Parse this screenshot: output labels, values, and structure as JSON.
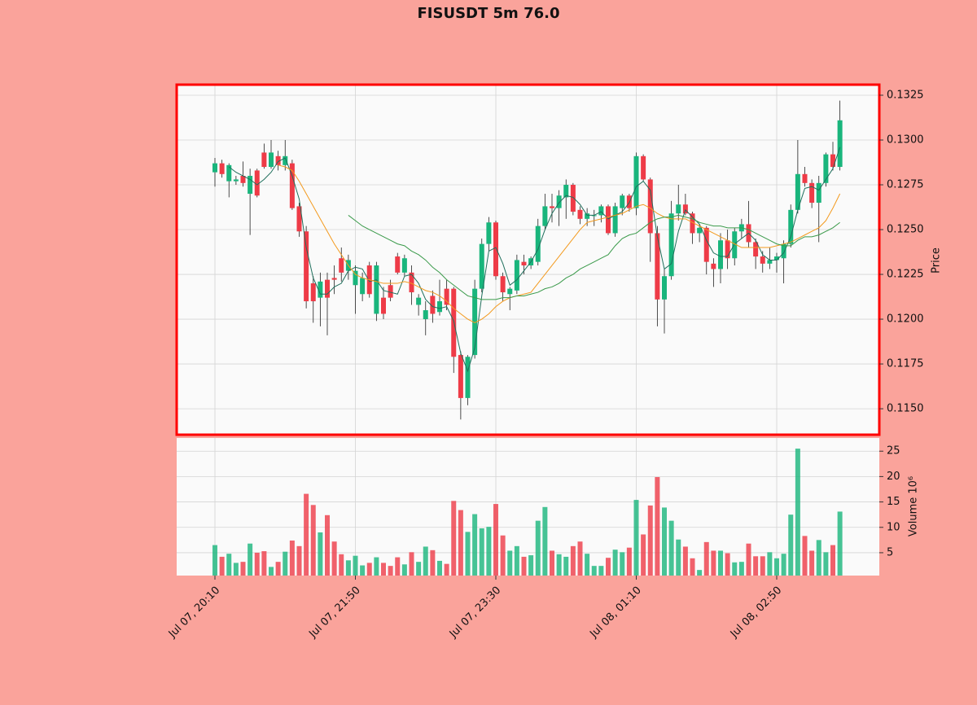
{
  "chart_data": {
    "type": "candlestick",
    "title": "FISUSDT 5m 76.0",
    "ylabel": "Price",
    "y2label": "Volume  10⁶",
    "up_color": "#19b57c",
    "down_color": "#ee3b47",
    "categories": [
      "Jul 07, 20:10",
      null,
      null,
      null,
      null,
      null,
      null,
      null,
      null,
      null,
      null,
      null,
      null,
      null,
      null,
      null,
      null,
      null,
      null,
      null,
      "Jul 07, 21:50",
      null,
      null,
      null,
      null,
      null,
      null,
      null,
      null,
      null,
      null,
      null,
      null,
      null,
      null,
      null,
      null,
      null,
      null,
      null,
      "Jul 07, 23:30",
      null,
      null,
      null,
      null,
      null,
      null,
      null,
      null,
      null,
      null,
      null,
      null,
      null,
      null,
      null,
      null,
      null,
      null,
      null,
      "Jul 08, 01:10",
      null,
      null,
      null,
      null,
      null,
      null,
      null,
      null,
      null,
      null,
      null,
      null,
      null,
      null,
      null,
      null,
      null,
      null,
      null,
      "Jul 08, 02:50",
      null,
      null,
      null,
      null,
      null,
      null,
      null,
      null,
      null
    ],
    "open": [
      0.1282,
      0.1287,
      0.1277,
      0.1277,
      0.128,
      0.127,
      0.1283,
      0.1293,
      0.1285,
      0.1291,
      0.1286,
      0.1287,
      0.1263,
      0.1249,
      0.122,
      0.1212,
      0.1222,
      0.1223,
      0.1234,
      0.1227,
      0.1219,
      0.1214,
      0.123,
      0.1203,
      0.1212,
      0.1219,
      0.1235,
      0.1226,
      0.1226,
      0.1208,
      0.12,
      0.1213,
      0.1204,
      0.1217,
      0.1217,
      0.118,
      0.1156,
      0.118,
      0.1217,
      0.1242,
      0.1254,
      0.1224,
      0.1214,
      0.1216,
      0.1232,
      0.123,
      0.1232,
      0.1252,
      0.1263,
      0.1262,
      0.1268,
      0.1275,
      0.1261,
      0.1256,
      0.1258,
      0.1258,
      0.1263,
      0.1248,
      0.1262,
      0.1269,
      0.1262,
      0.1291,
      0.1278,
      0.1248,
      0.1211,
      0.1224,
      0.1259,
      0.1264,
      0.1259,
      0.1248,
      0.1251,
      0.1231,
      0.1228,
      0.1244,
      0.1234,
      0.1249,
      0.1253,
      0.1243,
      0.1235,
      0.1231,
      0.1233,
      0.1234,
      0.1242,
      0.1261,
      0.1281,
      0.1276,
      0.1265,
      0.1276,
      0.1292,
      0.1285
    ],
    "high": [
      0.129,
      0.1289,
      0.1287,
      0.128,
      0.1288,
      0.1284,
      0.1284,
      0.1298,
      0.13,
      0.1294,
      0.13,
      0.1289,
      0.1265,
      0.1252,
      0.1224,
      0.1226,
      0.1226,
      0.123,
      0.124,
      0.1236,
      0.123,
      0.1226,
      0.1232,
      0.1232,
      0.1218,
      0.1222,
      0.1237,
      0.1236,
      0.123,
      0.1214,
      0.121,
      0.1216,
      0.1222,
      0.1222,
      0.1218,
      0.1182,
      0.118,
      0.1222,
      0.1245,
      0.1257,
      0.1255,
      0.1226,
      0.1218,
      0.1236,
      0.1236,
      0.1235,
      0.1256,
      0.127,
      0.127,
      0.1272,
      0.1278,
      0.1276,
      0.1263,
      0.1262,
      0.1261,
      0.1264,
      0.1264,
      0.1265,
      0.127,
      0.127,
      0.1293,
      0.1292,
      0.1279,
      0.1252,
      0.1228,
      0.1266,
      0.1275,
      0.127,
      0.126,
      0.1253,
      0.1252,
      0.1234,
      0.1248,
      0.125,
      0.1251,
      0.1256,
      0.1266,
      0.1245,
      0.1238,
      0.124,
      0.1237,
      0.1244,
      0.1264,
      0.13,
      0.1285,
      0.1278,
      0.128,
      0.1293,
      0.1299,
      0.1322
    ],
    "low": [
      0.1274,
      0.1279,
      0.1268,
      0.1275,
      0.1274,
      0.1247,
      0.1268,
      0.1284,
      0.1284,
      0.1283,
      0.1283,
      0.1261,
      0.1246,
      0.1206,
      0.1198,
      0.1196,
      0.1191,
      0.1214,
      0.1221,
      0.1222,
      0.1203,
      0.121,
      0.1212,
      0.1199,
      0.12,
      0.121,
      0.1225,
      0.1224,
      0.1208,
      0.1202,
      0.1191,
      0.1198,
      0.1202,
      0.1205,
      0.117,
      0.1144,
      0.1152,
      0.1178,
      0.1215,
      0.1238,
      0.1222,
      0.121,
      0.1205,
      0.1214,
      0.1225,
      0.1228,
      0.123,
      0.125,
      0.1254,
      0.1252,
      0.1256,
      0.1258,
      0.1253,
      0.1252,
      0.1252,
      0.1254,
      0.1247,
      0.1246,
      0.1258,
      0.126,
      0.1258,
      0.1277,
      0.1232,
      0.1196,
      0.1192,
      0.1222,
      0.1255,
      0.1258,
      0.1242,
      0.1243,
      0.1225,
      0.1218,
      0.122,
      0.1228,
      0.123,
      0.1245,
      0.124,
      0.1228,
      0.1226,
      0.1228,
      0.1226,
      0.122,
      0.124,
      0.1259,
      0.1274,
      0.1262,
      0.1243,
      0.1274,
      0.1283,
      0.1283
    ],
    "close": [
      0.1287,
      0.1281,
      0.1286,
      0.1278,
      0.1276,
      0.128,
      0.1269,
      0.1285,
      0.1293,
      0.1286,
      0.1291,
      0.1262,
      0.1249,
      0.121,
      0.121,
      0.1221,
      0.1212,
      0.1222,
      0.1226,
      0.1233,
      0.1227,
      0.1223,
      0.1214,
      0.123,
      0.1203,
      0.1212,
      0.1226,
      0.1234,
      0.1215,
      0.1212,
      0.1205,
      0.1203,
      0.121,
      0.1208,
      0.1179,
      0.1156,
      0.1179,
      0.1217,
      0.1242,
      0.1254,
      0.1224,
      0.1215,
      0.1217,
      0.1233,
      0.123,
      0.1234,
      0.1252,
      0.1263,
      0.1262,
      0.1269,
      0.1275,
      0.126,
      0.1256,
      0.1259,
      0.1258,
      0.1263,
      0.1248,
      0.1263,
      0.1269,
      0.1262,
      0.1291,
      0.1278,
      0.1248,
      0.1211,
      0.1224,
      0.1259,
      0.1264,
      0.1259,
      0.1248,
      0.1251,
      0.1232,
      0.1228,
      0.1244,
      0.1234,
      0.1249,
      0.1253,
      0.1243,
      0.1235,
      0.1231,
      0.1233,
      0.1235,
      0.1242,
      0.1261,
      0.1281,
      0.1276,
      0.1265,
      0.1276,
      0.1292,
      0.1285,
      0.1311
    ],
    "volume": [
      6.5,
      4.2,
      4.8,
      3.0,
      3.2,
      6.8,
      5.0,
      5.3,
      2.2,
      3.2,
      5.2,
      7.4,
      6.3,
      16.6,
      14.4,
      9.0,
      12.4,
      7.2,
      4.7,
      3.5,
      4.4,
      2.5,
      3.0,
      4.1,
      3.0,
      2.4,
      4.1,
      2.7,
      5.1,
      3.2,
      6.2,
      5.5,
      3.4,
      2.8,
      15.2,
      13.4,
      9.1,
      12.6,
      9.8,
      10.1,
      14.6,
      8.4,
      5.4,
      6.3,
      4.2,
      4.5,
      11.3,
      14.0,
      5.4,
      4.7,
      4.2,
      6.3,
      7.2,
      4.8,
      2.4,
      2.4,
      4.0,
      5.6,
      5.1,
      6.0,
      15.4,
      8.6,
      14.3,
      19.9,
      13.9,
      11.3,
      7.6,
      6.2,
      3.9,
      1.6,
      7.1,
      5.4,
      5.4,
      4.9,
      3.1,
      3.2,
      6.8,
      4.3,
      4.3,
      5.1,
      3.9,
      4.8,
      12.5,
      25.5,
      8.3,
      5.4,
      7.5,
      5.1,
      6.5,
      13.1
    ],
    "series": [
      {
        "color": "#1f6f5c",
        "values": [
          null,
          null,
          0.1285,
          0.1282,
          0.128,
          0.1278,
          0.1275,
          0.1278,
          0.1282,
          0.1288,
          0.129,
          0.128,
          0.1267,
          0.124,
          0.1223,
          0.1214,
          0.1214,
          0.1218,
          0.122,
          0.1227,
          0.1229,
          0.1228,
          0.1221,
          0.1222,
          0.1216,
          0.1215,
          0.1214,
          0.1224,
          0.1225,
          0.122,
          0.1211,
          0.1207,
          0.1206,
          0.1207,
          0.1199,
          0.1181,
          0.1171,
          0.1184,
          0.1213,
          0.1238,
          0.124,
          0.1231,
          0.1219,
          0.1222,
          0.1227,
          0.1232,
          0.1239,
          0.125,
          0.1259,
          0.1265,
          0.1269,
          0.1268,
          0.1264,
          0.1258,
          0.1258,
          0.126,
          0.1256,
          0.1258,
          0.126,
          0.1265,
          0.1274,
          0.1277,
          0.1272,
          0.1246,
          0.1228,
          0.1231,
          0.1249,
          0.1261,
          0.1257,
          0.1253,
          0.1244,
          0.1237,
          0.1235,
          0.1235,
          0.1242,
          0.1245,
          0.1248,
          0.1244,
          0.1236,
          0.1233,
          0.1233,
          0.1237,
          0.1246,
          0.1261,
          0.1273,
          0.1274,
          0.1272,
          0.1278,
          0.1284,
          0.1296
        ]
      },
      {
        "color": "#f39a1e",
        "values": [
          null,
          null,
          null,
          null,
          null,
          null,
          null,
          null,
          null,
          0.1286,
          0.1285,
          0.1283,
          0.1277,
          0.127,
          0.1263,
          0.1256,
          0.1249,
          0.1242,
          0.1236,
          0.123,
          0.1225,
          0.1223,
          0.1222,
          0.1221,
          0.122,
          0.122,
          0.122,
          0.1221,
          0.122,
          0.1218,
          0.1216,
          0.1215,
          0.1213,
          0.121,
          0.1206,
          0.1203,
          0.12,
          0.1198,
          0.12,
          0.1203,
          0.1207,
          0.121,
          0.1212,
          0.1213,
          0.1214,
          0.1215,
          0.122,
          0.1225,
          0.123,
          0.1235,
          0.124,
          0.1245,
          0.125,
          0.1254,
          0.1255,
          0.1256,
          0.1257,
          0.1258,
          0.1259,
          0.1261,
          0.1263,
          0.1264,
          0.1262,
          0.1259,
          0.1257,
          0.1256,
          0.1256,
          0.1256,
          0.1254,
          0.1252,
          0.125,
          0.1248,
          0.1246,
          0.1244,
          0.1242,
          0.124,
          0.124,
          0.124,
          0.124,
          0.124,
          0.1241,
          0.1242,
          0.1243,
          0.1245,
          0.1247,
          0.1249,
          0.1251,
          0.1255,
          0.1262,
          0.127
        ]
      },
      {
        "color": "#3a9a4a",
        "values": [
          null,
          null,
          null,
          null,
          null,
          null,
          null,
          null,
          null,
          null,
          null,
          null,
          null,
          null,
          null,
          null,
          null,
          null,
          null,
          0.1258,
          0.1255,
          0.1252,
          0.125,
          0.1248,
          0.1246,
          0.1244,
          0.1242,
          0.1241,
          0.1238,
          0.1236,
          0.1233,
          0.1229,
          0.1226,
          0.1222,
          0.1219,
          0.1216,
          0.1213,
          0.1212,
          0.1211,
          0.1211,
          0.1211,
          0.1212,
          0.1212,
          0.1213,
          0.1213,
          0.1214,
          0.1215,
          0.1217,
          0.1218,
          0.122,
          0.1223,
          0.1225,
          0.1228,
          0.123,
          0.1232,
          0.1234,
          0.1236,
          0.1241,
          0.1245,
          0.1247,
          0.1248,
          0.1251,
          0.1254,
          0.1256,
          0.1257,
          0.1257,
          0.1258,
          0.1257,
          0.1256,
          0.1254,
          0.1253,
          0.1252,
          0.1252,
          0.1251,
          0.1251,
          0.1251,
          0.125,
          0.1248,
          0.1246,
          0.1244,
          0.1242,
          0.1241,
          0.1241,
          0.1244,
          0.1246,
          0.1246,
          0.1247,
          0.1249,
          0.1251,
          0.1254
        ]
      }
    ],
    "ylim": [
      0.11355,
      0.13309
    ],
    "yticks": [
      {
        "value": 0.115,
        "label": "0.1150"
      },
      0.1175,
      {
        "value": 0.12,
        "label": "0.1200"
      },
      0.1225,
      {
        "value": 0.125,
        "label": "0.1250"
      },
      0.1275,
      {
        "value": 0.13,
        "label": "0.1300"
      },
      0.1325
    ],
    "y2lim": [
      0.5,
      27.6
    ],
    "y2ticks": [
      5,
      10,
      15,
      20,
      25
    ],
    "grid": true
  }
}
